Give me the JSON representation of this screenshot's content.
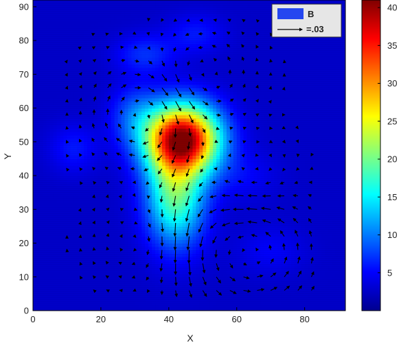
{
  "chart_data": {
    "type": "heatmap",
    "title": "",
    "xlabel": "X",
    "ylabel": "Y",
    "xlim": [
      0,
      92
    ],
    "ylim": [
      0,
      92
    ],
    "xticks": [
      "0",
      "20",
      "40",
      "60",
      "80"
    ],
    "yticks": [
      "0",
      "10",
      "20",
      "30",
      "40",
      "50",
      "60",
      "70",
      "80",
      "90"
    ],
    "colorbar": {
      "clim": [
        0,
        41
      ],
      "ticks": [
        "5",
        "10",
        "15",
        "20",
        "25",
        "30",
        "35",
        "40"
      ],
      "colormap": "jet"
    },
    "field": {
      "background": 3,
      "blobs": [
        {
          "x": 44,
          "y": 51,
          "sx": 7.5,
          "sy": 7.0,
          "amp": 37
        },
        {
          "x": 42,
          "y": 34,
          "sx": 6.0,
          "sy": 10.0,
          "amp": 16
        },
        {
          "x": 30,
          "y": 58,
          "sx": 5.0,
          "sy": 6.0,
          "amp": 5
        },
        {
          "x": 33,
          "y": 76,
          "sx": 6.0,
          "sy": 4.0,
          "amp": 4
        },
        {
          "x": 48,
          "y": 82,
          "sx": 6.0,
          "sy": 4.0,
          "amp": 3
        },
        {
          "x": 12,
          "y": 48,
          "sx": 5.0,
          "sy": 5.0,
          "amp": 3
        },
        {
          "x": 62,
          "y": 40,
          "sx": 7.0,
          "sy": 5.0,
          "amp": 2
        },
        {
          "x": 70,
          "y": 18,
          "sx": 7.0,
          "sy": 5.0,
          "amp": 2
        }
      ]
    },
    "vector_field": {
      "spacing": 4,
      "x_range": [
        10,
        82
      ],
      "y_range": [
        6,
        86
      ],
      "vortices": [
        {
          "x": 32,
          "y": 58,
          "strength": -1.0,
          "radius": 10
        },
        {
          "x": 50,
          "y": 70,
          "strength": 0.8,
          "radius": 9
        },
        {
          "x": 64,
          "y": 18,
          "strength": 1.2,
          "radius": 13
        },
        {
          "x": 65,
          "y": 38,
          "strength": -0.6,
          "radius": 9
        },
        {
          "x": 30,
          "y": 20,
          "strength": -0.5,
          "radius": 8
        }
      ],
      "downflow": {
        "x": 44,
        "y": 30,
        "sx": 5,
        "sy": 16,
        "strength": -0.9
      }
    },
    "legend": {
      "placement": "top-right",
      "entries": [
        {
          "label": "B",
          "kind": "patch",
          "color": "#2546f0"
        },
        {
          "label": "=.03",
          "kind": "arrow",
          "color": "#000000"
        }
      ]
    }
  }
}
